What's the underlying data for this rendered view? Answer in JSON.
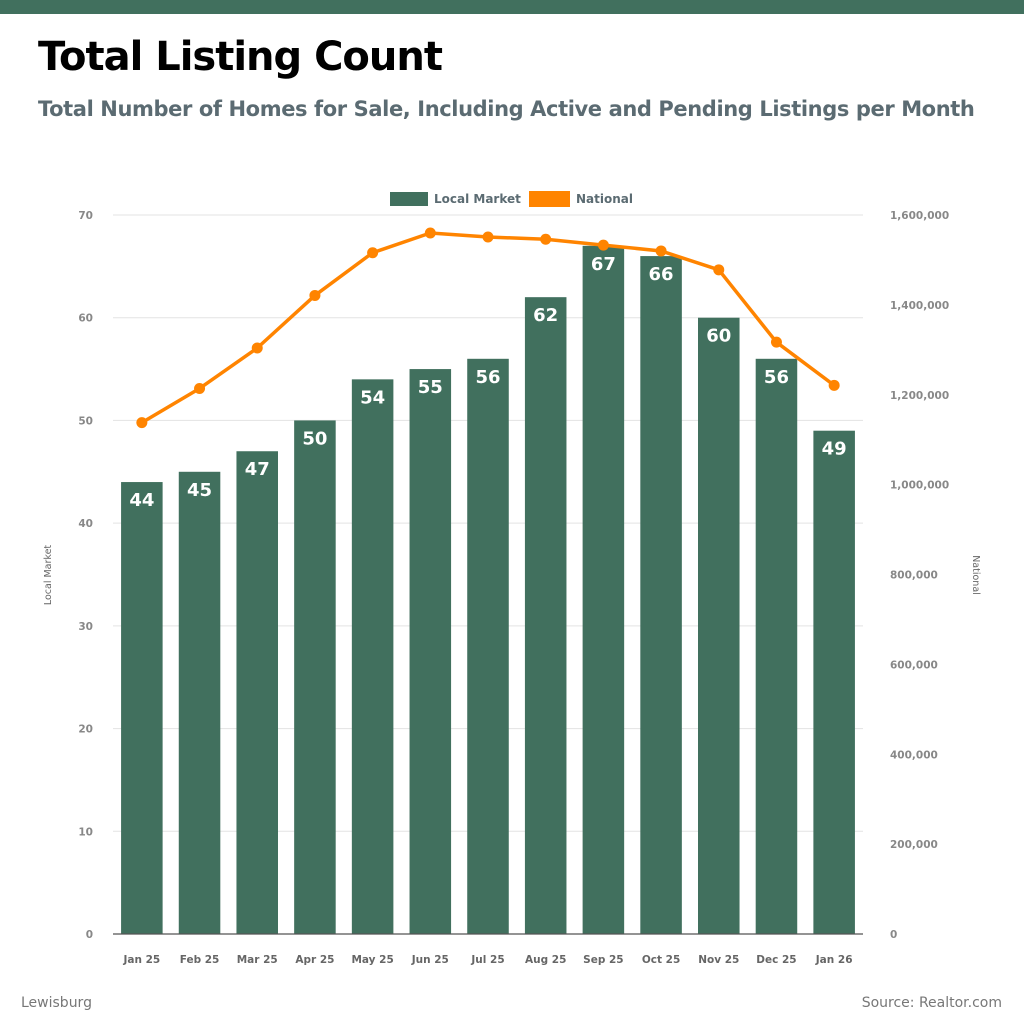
{
  "header": {
    "title": "Total Listing Count",
    "subtitle": "Total Number of Homes for Sale, Including Active and Pending Listings per Month"
  },
  "footer": {
    "location": "Lewisburg",
    "source": "Source: Realtor.com"
  },
  "colors": {
    "brand": "#41705e",
    "local_market": "#41705e",
    "national": "#ff8400",
    "gridline": "#e3e3e3"
  },
  "chart_data": {
    "type": "bar",
    "title": "Total Listing Count",
    "subtitle": "Total Number of Homes for Sale, Including Active and Pending Listings per Month",
    "categories": [
      "Jan 25",
      "Feb 25",
      "Mar 25",
      "Apr 25",
      "May 25",
      "Jun 25",
      "Jul 25",
      "Aug 25",
      "Sep 25",
      "Oct 25",
      "Nov 25",
      "Dec 25",
      "Jan 26"
    ],
    "series": [
      {
        "name": "Local Market",
        "type": "bar",
        "axis": "left",
        "values": [
          44,
          45,
          47,
          50,
          54,
          55,
          56,
          62,
          67,
          66,
          60,
          56,
          49
        ],
        "data_labels": [
          "44",
          "45",
          "47",
          "50",
          "54",
          "55",
          "56",
          "62",
          "67",
          "66",
          "60",
          "56",
          "49"
        ]
      },
      {
        "name": "National",
        "type": "line",
        "axis": "right",
        "values": [
          1138000,
          1214000,
          1304000,
          1421000,
          1516000,
          1560000,
          1551000,
          1546000,
          1533000,
          1520000,
          1478000,
          1317000,
          1221000
        ]
      }
    ],
    "left_axis": {
      "label": "Local Market",
      "range": [
        0,
        70
      ],
      "ticks": [
        0,
        10,
        20,
        30,
        40,
        50,
        60,
        70
      ],
      "tick_labels": [
        "0",
        "10",
        "20",
        "30",
        "40",
        "50",
        "60",
        "70"
      ]
    },
    "right_axis": {
      "label": "National",
      "range": [
        0,
        1600000
      ],
      "ticks": [
        0,
        200000,
        400000,
        600000,
        800000,
        1000000,
        1200000,
        1400000,
        1600000
      ],
      "tick_labels": [
        "0",
        "200,000",
        "400,000",
        "600,000",
        "800,000",
        "1,000,000",
        "1,200,000",
        "1,400,000",
        "1,600,000"
      ]
    },
    "xlabel": "",
    "grid": true,
    "legend": {
      "position": "top-center",
      "entries": [
        "Local Market",
        "National"
      ]
    }
  }
}
